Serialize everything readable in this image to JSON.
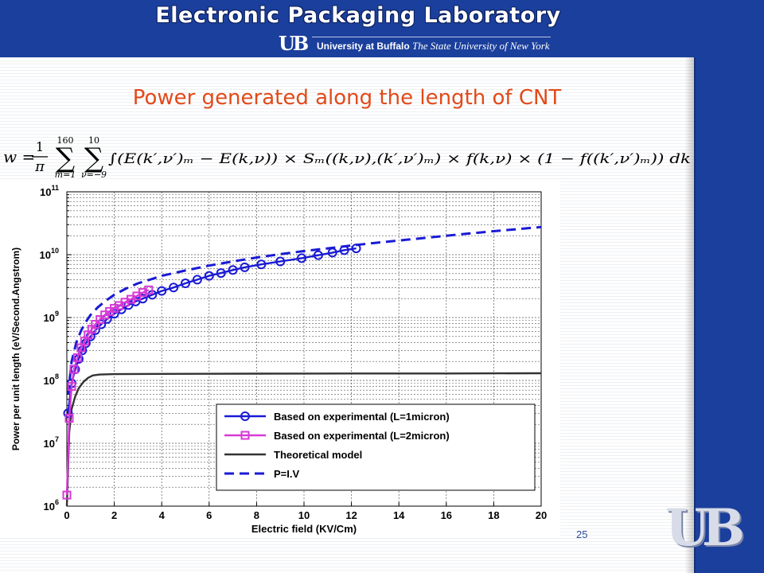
{
  "header": {
    "title": "Electronic Packaging Laboratory",
    "logo_text": "UB",
    "sub_a": "University at Buffalo",
    "sub_b": "The State University of New York"
  },
  "slide": {
    "title": "Power generated along the length of CNT",
    "formula": {
      "lhs": "w =",
      "frac_num": "1",
      "frac_den": "π",
      "sum1_upper": "160",
      "sum1_lower": "m=1",
      "sum2_upper": "10",
      "sum2_lower": "ν=−9",
      "body": "∫(E(k′,ν′)ₘ − E(k,ν)) × Sₘ((k,ν),(k′,ν′)ₘ) × f(k,ν) × (1 − f((k′,ν′)ₘ)) dk"
    },
    "page_number": "25",
    "footer_logo": "UB"
  },
  "colors": {
    "header_blue": "#1b3f9c",
    "title_orange": "#e24a1a",
    "series_blue": "#1a1ad6",
    "series_magenta": "#d63ad6",
    "theory_black": "#333333"
  },
  "chart_data": {
    "type": "line",
    "xlabel": "Electric field (KV/Cm)",
    "ylabel": "Power per unit length (eV/Second.Angstrom)",
    "xlim": [
      0,
      20
    ],
    "ylim": [
      1000000,
      100000000000
    ],
    "yscale": "log",
    "grid": true,
    "legend_placement": "bottom-right",
    "x_ticks": [
      "0",
      "2",
      "4",
      "6",
      "8",
      "10",
      "12",
      "14",
      "16",
      "18",
      "20"
    ],
    "y_ticks": [
      {
        "base": "10",
        "exp": "6",
        "value": 1000000
      },
      {
        "base": "10",
        "exp": "7",
        "value": 10000000
      },
      {
        "base": "10",
        "exp": "8",
        "value": 100000000
      },
      {
        "base": "10",
        "exp": "9",
        "value": 1000000000
      },
      {
        "base": "10",
        "exp": "10",
        "value": 10000000000
      },
      {
        "base": "10",
        "exp": "11",
        "value": 100000000000
      }
    ],
    "series": [
      {
        "name": "Based on experimental (L=1micron)",
        "color": "#1a1ad6",
        "marker": "circle",
        "dash": "solid",
        "x": [
          0.05,
          0.2,
          0.35,
          0.5,
          0.65,
          0.8,
          1.0,
          1.2,
          1.45,
          1.7,
          2.0,
          2.3,
          2.6,
          2.9,
          3.2,
          3.6,
          4.0,
          4.5,
          5.0,
          5.5,
          6.0,
          6.5,
          7.0,
          7.5,
          8.2,
          9.0,
          9.9,
          10.6,
          11.2,
          11.7,
          12.2
        ],
        "y": [
          30000000,
          90000000,
          150000000,
          220000000,
          300000000,
          390000000,
          500000000,
          630000000,
          780000000,
          950000000,
          1150000000,
          1350000000,
          1580000000,
          1800000000,
          2000000000,
          2300000000,
          2650000000,
          3000000000,
          3500000000,
          4000000000,
          4600000000,
          5100000000,
          5700000000,
          6300000000,
          7000000000,
          7800000000,
          8800000000,
          9800000000,
          10800000000,
          11800000000,
          12600000000
        ]
      },
      {
        "name": "Based on experimental (L=2micron)",
        "color": "#d63ad6",
        "marker": "square",
        "dash": "solid",
        "x": [
          0.0,
          0.1,
          0.2,
          0.3,
          0.45,
          0.6,
          0.75,
          0.9,
          1.05,
          1.2,
          1.4,
          1.6,
          1.8,
          2.0,
          2.2,
          2.45,
          2.7,
          2.95,
          3.2,
          3.45
        ],
        "y": [
          1500000,
          25000000,
          80000000,
          150000000,
          230000000,
          330000000,
          420000000,
          530000000,
          650000000,
          780000000,
          930000000,
          1100000000,
          1250000000,
          1400000000,
          1550000000,
          1750000000,
          1950000000,
          2200000000,
          2500000000,
          2750000000
        ]
      },
      {
        "name": "Theoretical model",
        "color": "#333333",
        "marker": "none",
        "dash": "solid",
        "x": [
          0.0,
          0.1,
          0.2,
          0.35,
          0.5,
          0.7,
          0.9,
          1.1,
          1.4,
          2.0,
          4.0,
          8.0,
          12.0,
          16.0,
          20.0
        ],
        "y": [
          1000000,
          15000000,
          35000000,
          55000000,
          75000000,
          95000000,
          110000000,
          120000000,
          124000000,
          126000000,
          127000000,
          128000000,
          129000000,
          129000000,
          130000000
        ]
      },
      {
        "name": "P=I.V",
        "color": "#1a1ad6",
        "marker": "none",
        "dash": "dashed",
        "x": [
          0.05,
          0.2,
          0.4,
          0.6,
          0.8,
          1.0,
          1.3,
          1.6,
          2.0,
          2.5,
          3.0,
          3.5,
          4.0,
          5.0,
          6.0,
          7.0,
          8.0,
          9.0,
          10.0,
          11.0,
          12.0,
          13.0,
          14.0,
          15.0,
          16.0,
          17.0,
          18.0,
          19.0,
          20.0
        ],
        "y": [
          60000000,
          200000000,
          400000000,
          620000000,
          850000000,
          1100000000,
          1450000000,
          1800000000,
          2300000000,
          2900000000,
          3500000000,
          4000000000,
          4600000000,
          5600000000,
          6700000000,
          7800000000,
          9000000000,
          10200000000,
          11400000000,
          12600000000,
          14000000000,
          15400000000,
          16800000000,
          18300000000,
          20000000000,
          21800000000,
          23600000000,
          25500000000,
          27500000000
        ]
      }
    ]
  }
}
